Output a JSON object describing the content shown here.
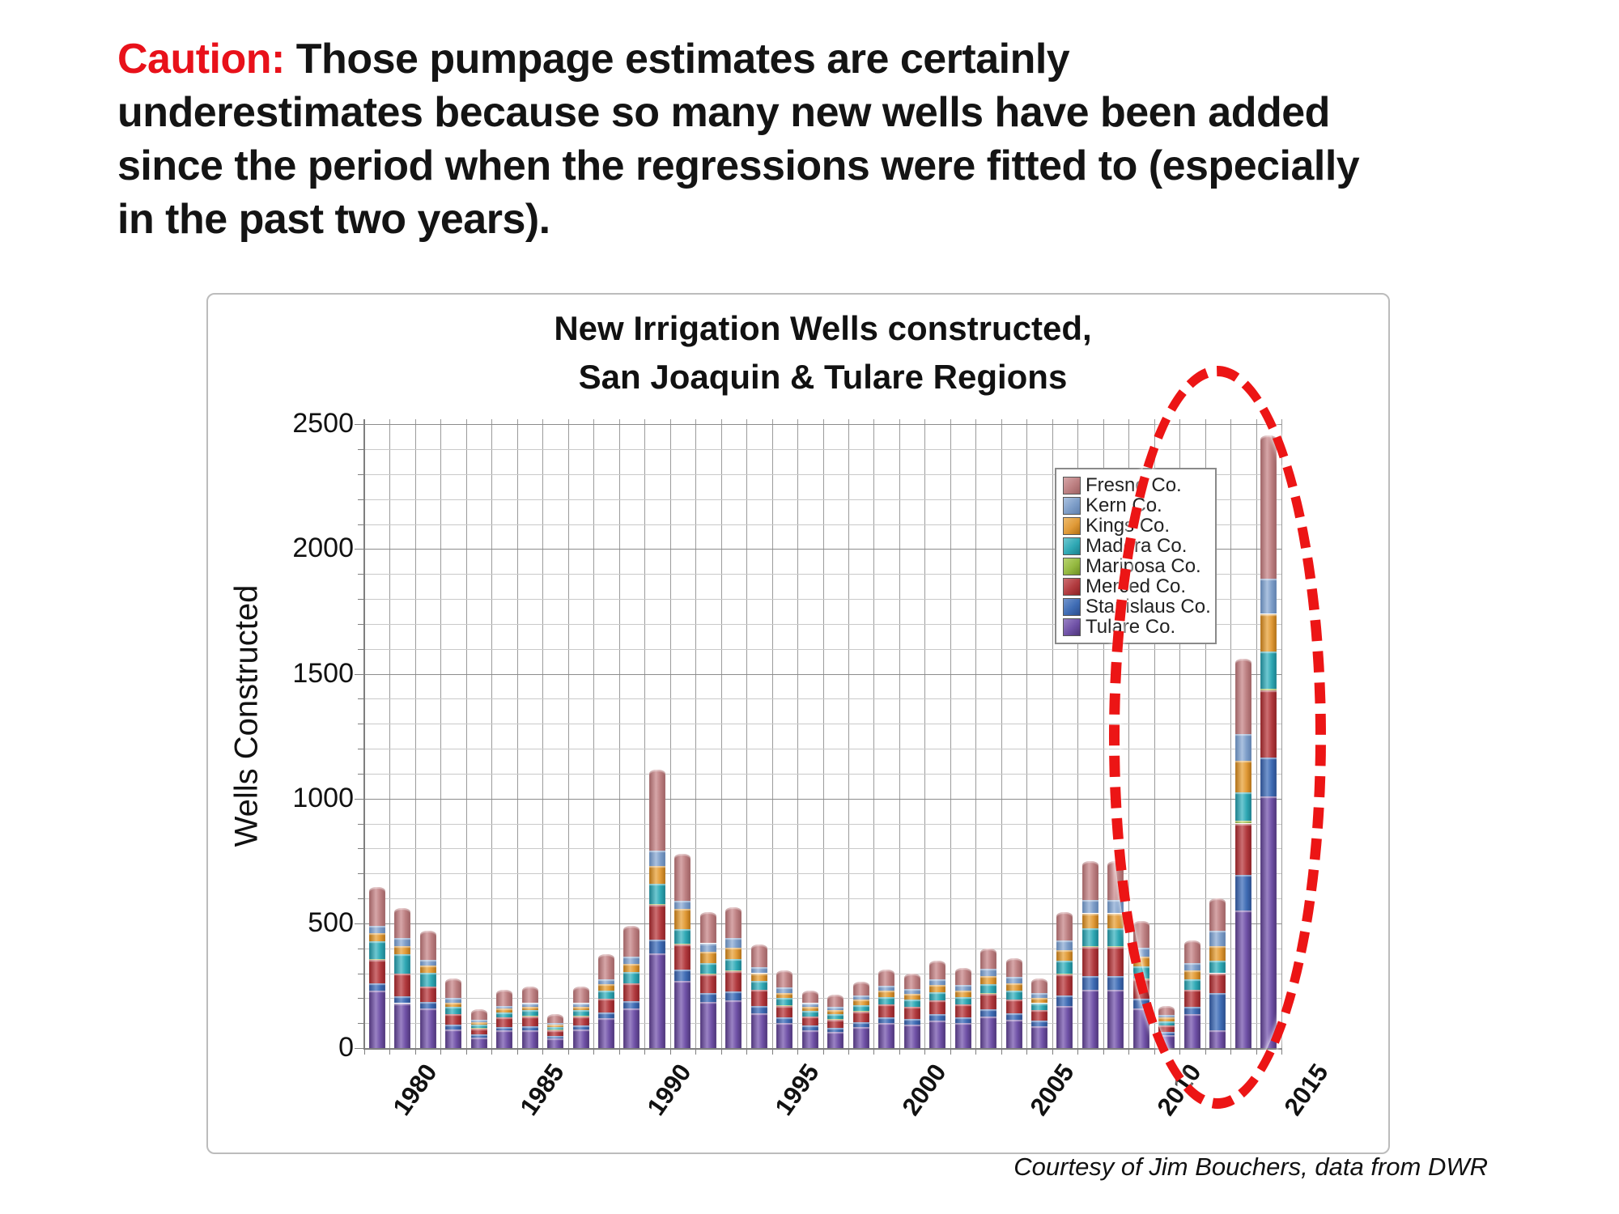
{
  "slide": {
    "heading": {
      "caution_label": "Caution:",
      "line1_rest": " Those pumpage estimates are certainly",
      "line2": "underestimates because so many new wells have been added",
      "line3": "since the period when the regressions were fitted to (especially",
      "line4": "in the past two years).",
      "caution_color": "#e8111a"
    },
    "courtesy": "Courtesy of Jim Bouchers, data from DWR",
    "annotation_ellipse_color": "#ec1515"
  },
  "chart_data": {
    "type": "bar",
    "stacked": true,
    "title_line1": "New Irrigation Wells constructed,",
    "title_line2": "San Joaquin & Tulare Regions",
    "ylabel": "Wells Constructed",
    "ylim": [
      0,
      2500
    ],
    "y_major_step": 500,
    "y_minor_step": 100,
    "grid": true,
    "legend_position": "inside-right",
    "y_tick_labels": [
      "0",
      "500",
      "1000",
      "1500",
      "2000",
      "2500"
    ],
    "x_tick_labels": [
      "1980",
      "1985",
      "1990",
      "1995",
      "2000",
      "2005",
      "2010",
      "2015"
    ],
    "categories": [
      1980,
      1981,
      1982,
      1983,
      1984,
      1985,
      1986,
      1987,
      1988,
      1989,
      1990,
      1991,
      1992,
      1993,
      1994,
      1995,
      1996,
      1997,
      1998,
      1999,
      2000,
      2001,
      2002,
      2003,
      2004,
      2005,
      2006,
      2007,
      2008,
      2009,
      2010,
      2011,
      2012,
      2013,
      2014,
      2015
    ],
    "legend_order_top_to_bottom": [
      "Fresno Co.",
      "Kern Co.",
      "Kings Co.",
      "Madera Co.",
      "Mariposa Co.",
      "Merced Co.",
      "Stanislaus Co.",
      "Tulare Co."
    ],
    "series": [
      {
        "name": "Tulare Co.",
        "color": "#6f51a6",
        "light": "#9a82c4",
        "dark": "#4e3579",
        "values": [
          230,
          180,
          160,
          75,
          42,
          70,
          70,
          40,
          75,
          120,
          160,
          380,
          270,
          185,
          190,
          140,
          100,
          72,
          65,
          85,
          100,
          95,
          110,
          100,
          125,
          112,
          88,
          170,
          235,
          235,
          160,
          52,
          135,
          70,
          550,
          1010
        ]
      },
      {
        "name": "Stanislaus Co.",
        "color": "#3f6cb4",
        "light": "#7295cd",
        "dark": "#2b4d8c",
        "values": [
          30,
          28,
          25,
          20,
          12,
          15,
          18,
          10,
          15,
          22,
          28,
          55,
          45,
          35,
          38,
          30,
          22,
          18,
          16,
          20,
          24,
          22,
          26,
          24,
          30,
          27,
          21,
          40,
          55,
          55,
          38,
          13,
          32,
          150,
          145,
          155
        ]
      },
      {
        "name": "Merced Co.",
        "color": "#b13b3f",
        "light": "#cc6f72",
        "dark": "#8c2024",
        "values": [
          95,
          90,
          60,
          40,
          25,
          38,
          40,
          22,
          38,
          55,
          70,
          140,
          100,
          75,
          80,
          62,
          48,
          36,
          34,
          42,
          50,
          48,
          55,
          50,
          62,
          56,
          44,
          85,
          115,
          115,
          78,
          26,
          66,
          80,
          205,
          270
        ]
      },
      {
        "name": "Mariposa Co.",
        "color": "#94b840",
        "light": "#b8d470",
        "dark": "#6d8e22",
        "values": [
          2,
          2,
          2,
          2,
          1,
          1,
          2,
          1,
          1,
          2,
          2,
          3,
          3,
          2,
          2,
          2,
          2,
          1,
          1,
          1,
          1,
          1,
          1,
          1,
          2,
          1,
          1,
          2,
          3,
          3,
          2,
          1,
          2,
          2,
          10,
          5
        ]
      },
      {
        "name": "Madera Co.",
        "color": "#2fa8b4",
        "light": "#6fc8d1",
        "dark": "#1b7f8c",
        "values": [
          70,
          75,
          55,
          28,
          15,
          20,
          22,
          12,
          22,
          32,
          45,
          80,
          60,
          45,
          48,
          36,
          28,
          22,
          20,
          25,
          30,
          28,
          33,
          30,
          38,
          34,
          26,
          52,
          72,
          72,
          49,
          16,
          41,
          48,
          115,
          150
        ]
      },
      {
        "name": "Kings Co.",
        "color": "#e09a38",
        "light": "#eebb6e",
        "dark": "#b06f15",
        "values": [
          35,
          35,
          28,
          18,
          10,
          14,
          15,
          9,
          15,
          24,
          32,
          72,
          80,
          43,
          44,
          30,
          22,
          16,
          16,
          20,
          24,
          23,
          28,
          26,
          32,
          29,
          22,
          44,
          60,
          60,
          41,
          14,
          34,
          60,
          125,
          150
        ]
      },
      {
        "name": "Kern Co.",
        "color": "#7d9dc8",
        "light": "#abc2e0",
        "dark": "#5f80ad",
        "values": [
          28,
          30,
          25,
          17,
          10,
          12,
          13,
          8,
          14,
          20,
          28,
          60,
          32,
          35,
          38,
          25,
          20,
          15,
          14,
          17,
          21,
          20,
          24,
          22,
          28,
          25,
          20,
          38,
          52,
          52,
          35,
          12,
          30,
          60,
          110,
          140
        ]
      },
      {
        "name": "Fresno Co.",
        "color": "#bc7f81",
        "light": "#d6a6a8",
        "dark": "#9d6163",
        "values": [
          155,
          120,
          115,
          80,
          40,
          65,
          65,
          33,
          65,
          100,
          125,
          325,
          190,
          125,
          125,
          90,
          68,
          50,
          49,
          55,
          65,
          63,
          73,
          67,
          83,
          76,
          58,
          114,
          158,
          158,
          107,
          36,
          90,
          130,
          300,
          575
        ]
      }
    ]
  }
}
